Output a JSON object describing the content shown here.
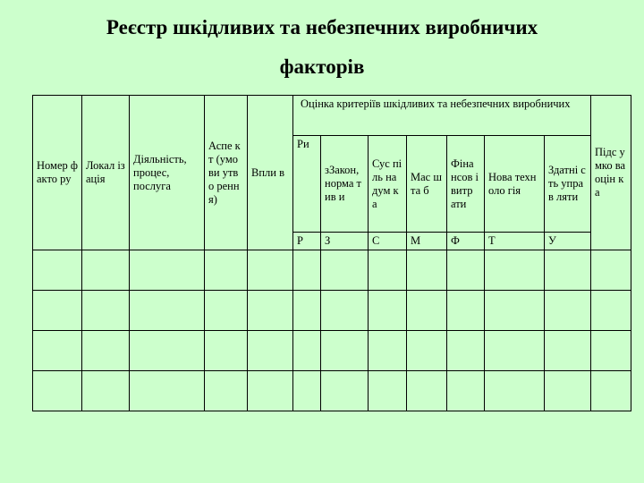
{
  "title": {
    "line1": "Реєстр шкідливих та небезпечних виробничих",
    "line2": "факторів"
  },
  "table": {
    "headers": {
      "number": "Номер факто ру",
      "location": "Локал ізація",
      "activity": "Діяльність, процес, послуга",
      "aspect": "Аспе кт (умо ви утво ренн я)",
      "impact": "Впли в",
      "criteria_group": "Оцінка критеріїв шкідливих та небезпечних виробничих",
      "total": "Підс умко ва оцін ка"
    },
    "criteria": [
      {
        "label": "Ри",
        "letter": "Р"
      },
      {
        "label": "зЗакон, норма тив и",
        "letter": "З"
      },
      {
        "label": "Сус піль на дум ка",
        "letter": "С"
      },
      {
        "label": "Мас шта б",
        "letter": "М"
      },
      {
        "label": "Фіна нсов і витр ати",
        "letter": "Ф"
      },
      {
        "label": "Нова техноло гія",
        "letter": "Т"
      },
      {
        "label": "Здатні сть управ ляти",
        "letter": "У"
      }
    ],
    "body_rows": 4
  }
}
